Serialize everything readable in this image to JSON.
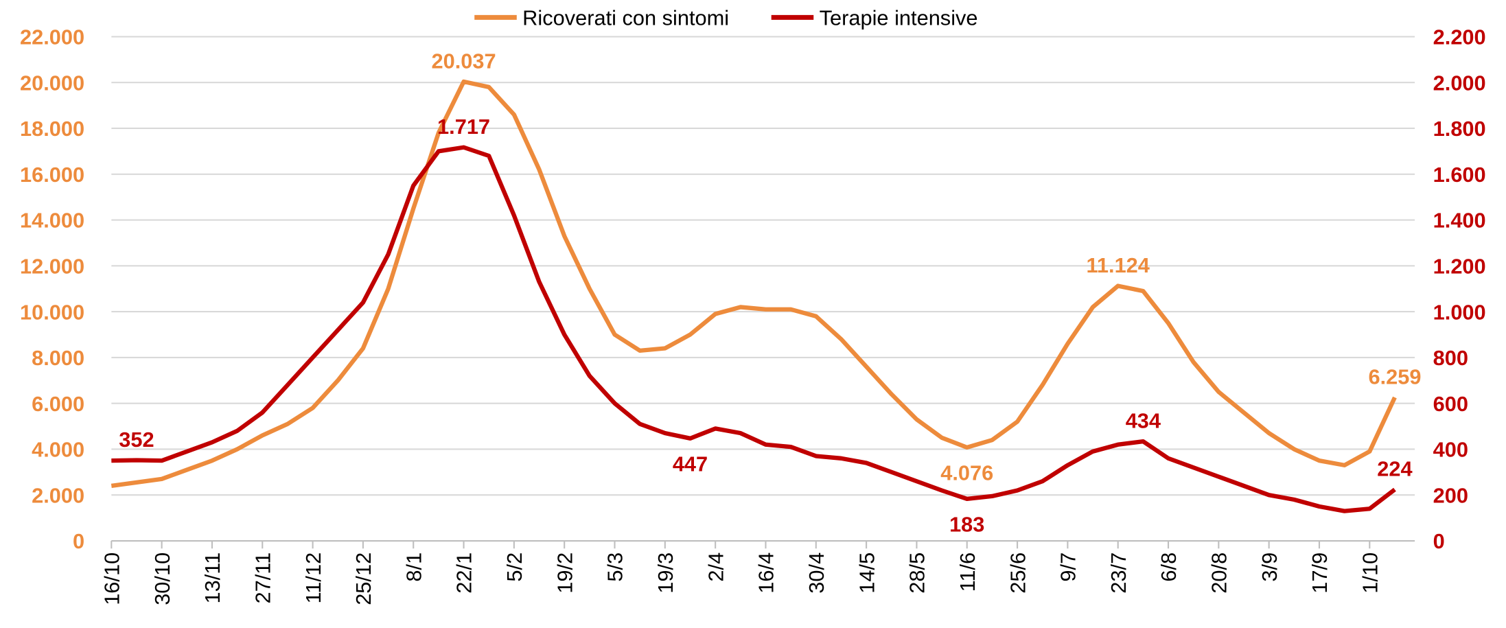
{
  "chart_data": {
    "type": "line",
    "categories": [
      "16/10",
      null,
      "30/10",
      null,
      "13/11",
      null,
      "27/11",
      null,
      "11/12",
      null,
      "25/12",
      null,
      "8/1",
      null,
      "22/1",
      null,
      "5/2",
      null,
      "19/2",
      null,
      "5/3",
      null,
      "19/3",
      null,
      "2/4",
      null,
      "16/4",
      null,
      "30/4",
      null,
      "14/5",
      null,
      "28/5",
      null,
      "11/6",
      null,
      "25/6",
      null,
      "9/7",
      null,
      "23/7",
      null,
      "6/8",
      null,
      "20/8",
      null,
      "3/9",
      null,
      "17/9",
      null,
      "1/10",
      null
    ],
    "series": [
      {
        "name": "Ricoverati con sintomi",
        "color": "#ed8b3c",
        "values": [
          2400,
          2550,
          2700,
          3100,
          3500,
          4000,
          4600,
          5100,
          5800,
          7000,
          8400,
          11000,
          14500,
          17800,
          20037,
          19800,
          18600,
          16200,
          13300,
          11000,
          9000,
          8300,
          8400,
          9000,
          9900,
          10200,
          10100,
          10100,
          9800,
          8800,
          7600,
          6400,
          5300,
          4500,
          4076,
          4400,
          5200,
          6800,
          8600,
          10200,
          11124,
          10900,
          9500,
          7800,
          6500,
          5600,
          4700,
          4000,
          3500,
          3300,
          3900,
          6259
        ],
        "value_labels": [
          null,
          null,
          null,
          null,
          null,
          null,
          null,
          null,
          null,
          null,
          null,
          null,
          null,
          null,
          "20.037",
          null,
          null,
          null,
          null,
          null,
          null,
          null,
          null,
          null,
          null,
          null,
          null,
          null,
          null,
          null,
          null,
          null,
          null,
          null,
          "4.076",
          null,
          null,
          null,
          null,
          null,
          "11.124",
          null,
          null,
          null,
          null,
          null,
          null,
          null,
          null,
          null,
          null,
          "6.259"
        ]
      },
      {
        "name": "Terapie intensive",
        "color": "#c00000",
        "axis": "y2",
        "values": [
          350,
          352,
          350,
          390,
          430,
          480,
          560,
          680,
          800,
          920,
          1040,
          1250,
          1550,
          1700,
          1717,
          1680,
          1420,
          1130,
          900,
          720,
          600,
          510,
          470,
          447,
          490,
          470,
          420,
          410,
          370,
          360,
          340,
          300,
          260,
          220,
          183,
          195,
          220,
          260,
          330,
          390,
          420,
          434,
          360,
          320,
          280,
          240,
          200,
          180,
          150,
          130,
          140,
          224
        ],
        "value_labels": [
          null,
          "352",
          null,
          null,
          null,
          null,
          null,
          null,
          null,
          null,
          null,
          null,
          null,
          null,
          "1.717",
          null,
          null,
          null,
          null,
          null,
          null,
          null,
          null,
          "447",
          null,
          null,
          null,
          null,
          null,
          null,
          null,
          null,
          null,
          null,
          "183",
          null,
          null,
          null,
          null,
          null,
          null,
          "434",
          null,
          null,
          null,
          null,
          null,
          null,
          null,
          null,
          null,
          "224"
        ]
      }
    ],
    "ylim": [
      0,
      22000
    ],
    "yticks": [
      0,
      {
        "value": 2000,
        "label": "2.000"
      },
      {
        "value": 4000,
        "label": "4.000"
      },
      {
        "value": 6000,
        "label": "6.000"
      },
      {
        "value": 8000,
        "label": "8.000"
      },
      {
        "value": 10000,
        "label": "10.000"
      },
      {
        "value": 12000,
        "label": "12.000"
      },
      {
        "value": 14000,
        "label": "14.000"
      },
      {
        "value": 16000,
        "label": "16.000"
      },
      {
        "value": 18000,
        "label": "18.000"
      },
      {
        "value": 20000,
        "label": "20.000"
      },
      {
        "value": 22000,
        "label": "22.000"
      }
    ],
    "y2lim": [
      0,
      2200
    ],
    "y2ticks": [
      0,
      200,
      400,
      600,
      800,
      {
        "value": 1000,
        "label": "1.000"
      },
      {
        "value": 1200,
        "label": "1.200"
      },
      {
        "value": 1400,
        "label": "1.400"
      },
      {
        "value": 1600,
        "label": "1.600"
      },
      {
        "value": 1800,
        "label": "1.800"
      },
      {
        "value": 2000,
        "label": "2.000"
      },
      {
        "value": 2200,
        "label": "2.200"
      }
    ],
    "grid": true,
    "legend": "top"
  }
}
